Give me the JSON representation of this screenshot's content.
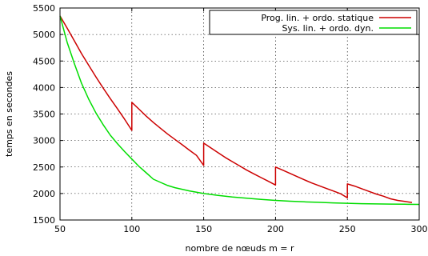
{
  "chart_data": {
    "type": "line",
    "xlabel": "nombre de nœuds m = r",
    "ylabel": "temps en secondes",
    "xlim": [
      50,
      300
    ],
    "ylim": [
      1500,
      5500
    ],
    "xticks": [
      50,
      100,
      150,
      200,
      250,
      300
    ],
    "yticks": [
      1500,
      2000,
      2500,
      3000,
      3500,
      4000,
      4500,
      5000,
      5500
    ],
    "xtick_labels": [
      "50",
      "100",
      "150",
      "200",
      "250",
      "300"
    ],
    "ytick_labels": [
      "1500",
      "2000",
      "2500",
      "3000",
      "3500",
      "4000",
      "4500",
      "5000",
      "5500"
    ],
    "grid": true,
    "legend_position": "top-right",
    "series": [
      {
        "name": "Prog. lin. + ordo. statique",
        "color": "#cc0000",
        "x": [
          50,
          55,
          60,
          65,
          70,
          75,
          80,
          85,
          90,
          95,
          100,
          100,
          105,
          110,
          115,
          120,
          125,
          130,
          135,
          140,
          145,
          150,
          150,
          155,
          160,
          165,
          170,
          175,
          180,
          185,
          190,
          195,
          200,
          200,
          205,
          210,
          215,
          220,
          225,
          230,
          235,
          240,
          245,
          250,
          250,
          255,
          260,
          265,
          270,
          275,
          280,
          285,
          290,
          295
        ],
        "y": [
          5350,
          5120,
          4880,
          4640,
          4420,
          4200,
          3990,
          3790,
          3600,
          3400,
          3190,
          3720,
          3590,
          3460,
          3340,
          3230,
          3120,
          3020,
          2920,
          2820,
          2720,
          2530,
          2950,
          2860,
          2770,
          2680,
          2600,
          2520,
          2440,
          2370,
          2300,
          2230,
          2160,
          2500,
          2440,
          2380,
          2320,
          2260,
          2200,
          2150,
          2100,
          2050,
          2000,
          1920,
          2180,
          2140,
          2090,
          2040,
          1990,
          1950,
          1900,
          1870,
          1850,
          1830
        ]
      },
      {
        "name": "Sys. lin. + ordo. dyn.",
        "color": "#00dd00",
        "x": [
          50,
          55,
          60,
          65,
          70,
          75,
          80,
          85,
          90,
          95,
          100,
          105,
          110,
          115,
          120,
          125,
          130,
          140,
          150,
          160,
          170,
          180,
          190,
          200,
          210,
          220,
          230,
          240,
          250,
          260,
          270,
          280,
          290,
          300
        ],
        "y": [
          5350,
          4850,
          4450,
          4080,
          3780,
          3520,
          3300,
          3100,
          2940,
          2790,
          2650,
          2510,
          2390,
          2270,
          2210,
          2150,
          2110,
          2050,
          2000,
          1965,
          1935,
          1910,
          1890,
          1870,
          1855,
          1843,
          1833,
          1823,
          1815,
          1808,
          1803,
          1800,
          1797,
          1795
        ]
      }
    ]
  }
}
